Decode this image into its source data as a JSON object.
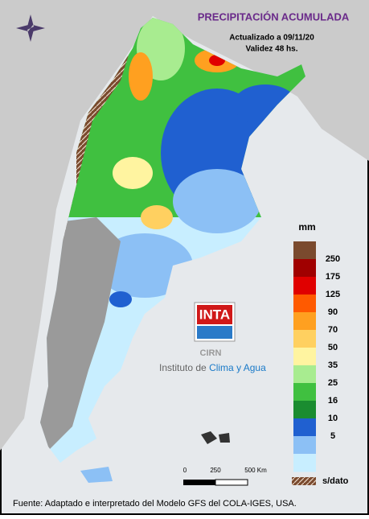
{
  "header": {
    "title": "PRECIPITACIÓN ACUMULADA",
    "updated": "Actualizado a 09/11/20",
    "validity": "Validez 48 hs."
  },
  "legend": {
    "unit": "mm",
    "colors": [
      "#7a4a2e",
      "#a00000",
      "#e00000",
      "#ff5a00",
      "#ffa020",
      "#ffd060",
      "#fff4a0",
      "#a8ec90",
      "#40c040",
      "#1a8c30",
      "#2060d0",
      "#8cc0f5",
      "#c8eeff"
    ],
    "labels": [
      "250",
      "175",
      "125",
      "90",
      "70",
      "50",
      "35",
      "25",
      "16",
      "10",
      "5"
    ],
    "no_data": "s/dato"
  },
  "scale": {
    "labels": [
      "0",
      "250",
      "500 Km"
    ]
  },
  "logo": {
    "name": "INTA",
    "center": "CIRN",
    "institute_prefix": "Instituto de",
    "institute_highlight": "Clima y Agua"
  },
  "footer": "Fuente: Adaptado e interpretado del Modelo GFS del COLA-IGES, USA."
}
